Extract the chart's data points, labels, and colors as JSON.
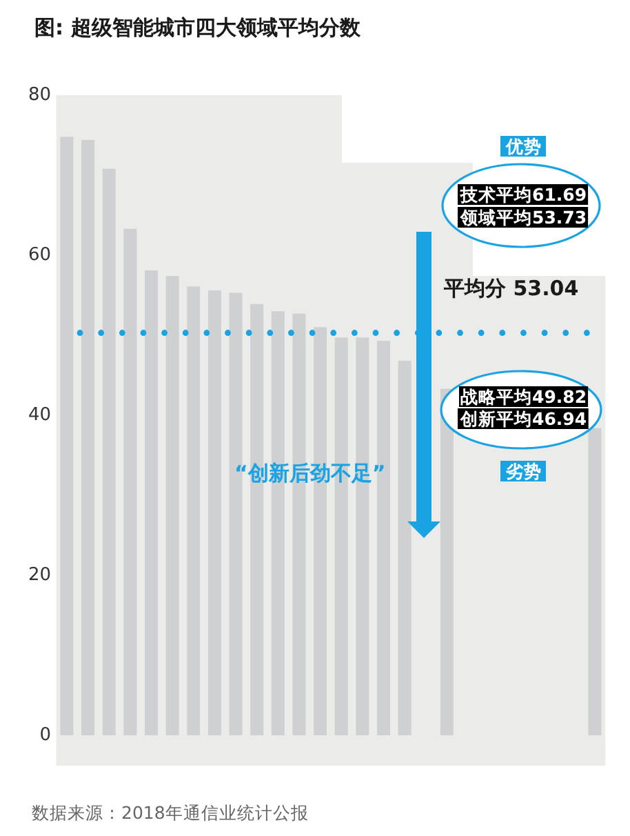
{
  "chart_data": {
    "type": "bar",
    "title": "图: 超级智能城市四大领域平均分数",
    "categories": [
      null,
      null,
      null,
      null,
      null,
      null,
      null,
      null,
      null,
      null,
      null,
      null,
      null,
      null,
      null,
      null,
      null,
      null,
      null,
      null,
      null,
      null,
      null,
      null,
      null,
      null
    ],
    "values": [
      74.8,
      74.4,
      70.8,
      63.3,
      58.1,
      57.4,
      56.1,
      55.6,
      55.3,
      53.9,
      53.0,
      52.7,
      51.0,
      49.7,
      49.7,
      49.3,
      46.8,
      null,
      43.3,
      null,
      null,
      null,
      null,
      null,
      null,
      38.4
    ],
    "color": "#cfd0d2",
    "ylim": [
      0,
      80
    ],
    "yticks": [
      0,
      20,
      40,
      60,
      80
    ],
    "tick_labels": "y",
    "ref_lines": [
      {
        "axis": "y",
        "value": 50.3,
        "color": "#19a3e3",
        "line_style": "dotted"
      }
    ],
    "annotations": [
      "优势",
      "技术平均61.69",
      "领域平均53.73",
      "平均分 53.04",
      "战略平均49.82",
      "创新平均46.94",
      "“创新后劲不足”",
      "劣势",
      "数据来源：2018年通信业统计公报"
    ]
  }
}
